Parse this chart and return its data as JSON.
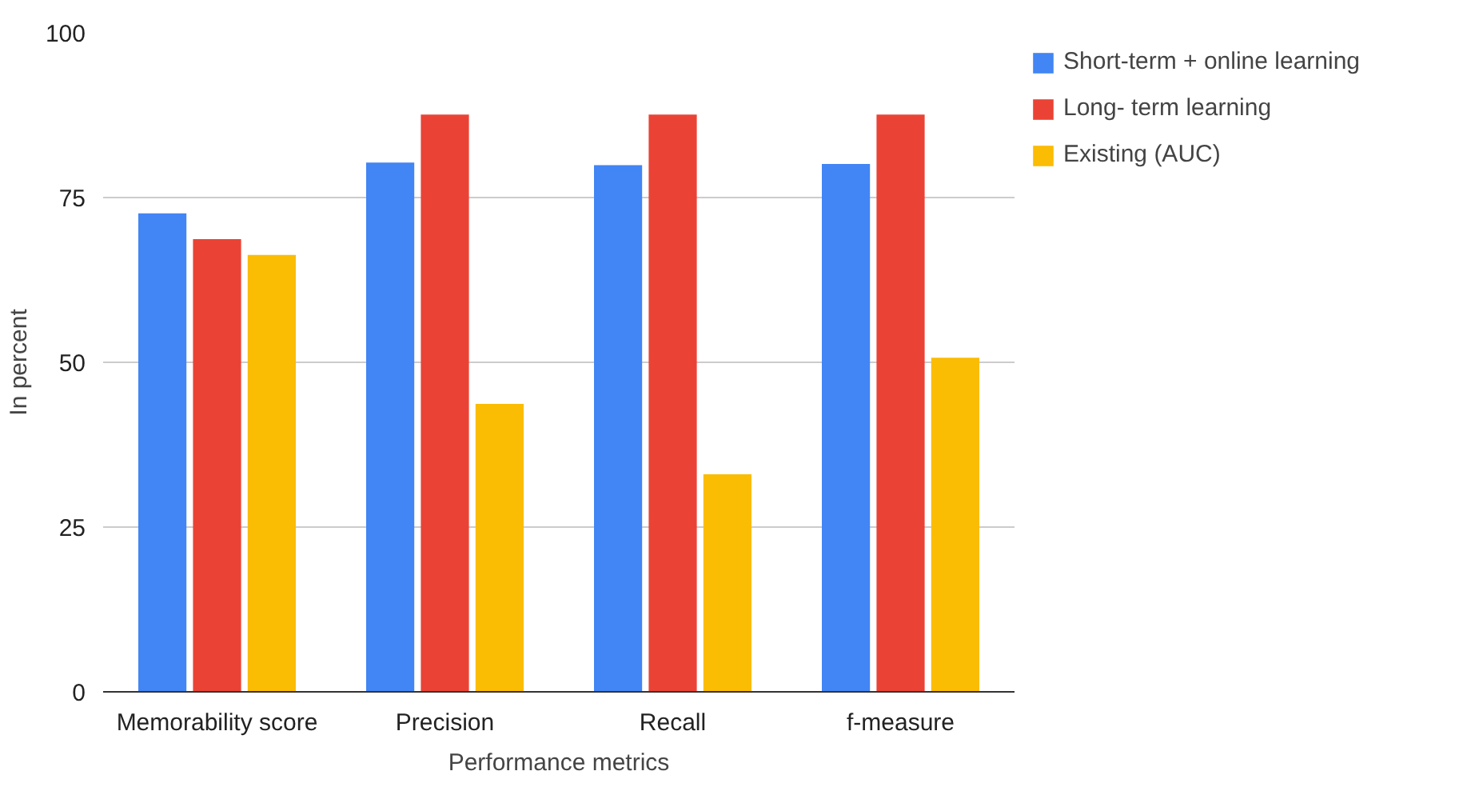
{
  "chart_data": {
    "type": "bar",
    "xlabel": "Performance metrics",
    "ylabel": "In percent",
    "categories": [
      "Memorability score",
      "Precision",
      "Recall",
      "f-measure"
    ],
    "series": [
      {
        "name": "Short-term + online learning",
        "color": "#4285f4",
        "values": [
          72.6,
          80.3,
          79.9,
          80.1
        ]
      },
      {
        "name": "Long- term learning",
        "color": "#ea4335",
        "values": [
          68.7,
          87.6,
          87.6,
          87.6
        ]
      },
      {
        "name": "Existing (AUC)",
        "color": "#fbbc04",
        "values": [
          66.3,
          43.7,
          33.0,
          50.7
        ]
      }
    ],
    "ylim": [
      0,
      100
    ],
    "yticks": [
      0,
      25,
      50,
      75,
      100
    ],
    "grid": "y",
    "legend": "right"
  }
}
